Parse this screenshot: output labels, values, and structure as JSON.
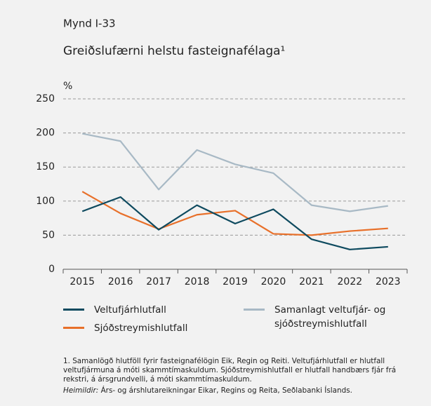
{
  "chart_data": {
    "type": "line",
    "figure_number": "Mynd I-33",
    "title": "Greiðslufærni helstu fasteignafélaga¹",
    "y_label": "%",
    "categories": [
      "2015",
      "2016",
      "2017",
      "2018",
      "2019",
      "2020",
      "2021",
      "2022",
      "2023"
    ],
    "series": [
      {
        "name": "Veltufjárhlutfall",
        "color": "#0e4a5f",
        "values": [
          85,
          106,
          58,
          94,
          67,
          88,
          44,
          29,
          33
        ]
      },
      {
        "name": "Sjóðstreymishlutfall",
        "color": "#e8702a",
        "values": [
          114,
          82,
          59,
          80,
          86,
          52,
          50,
          56,
          60
        ]
      },
      {
        "name": "Samanlagt veltufjár- og sjóðstreymishlutfall",
        "color": "#a8b9c5",
        "values": [
          199,
          188,
          117,
          175,
          154,
          141,
          94,
          85,
          93
        ]
      }
    ],
    "ylim": [
      0,
      250
    ],
    "yticks": [
      0,
      50,
      100,
      150,
      200,
      250
    ],
    "grid": true,
    "footnote": "1. Samanlögð hlutföll fyrir fasteignafélögin Eik, Regin og Reiti. Veltufjárhlutfall er hlutfall veltufjármuna á móti skammtímaskuldum. Sjóðstreymishlutfall er hlutfall handbærs fjár frá rekstri, á ársgrundvelli, á móti skammtímaskuldum.",
    "source_label": "Heimildir:",
    "source_text": "Árs- og árshlutareikningar Eikar, Regins og Reita, Seðlabanki Íslands."
  }
}
